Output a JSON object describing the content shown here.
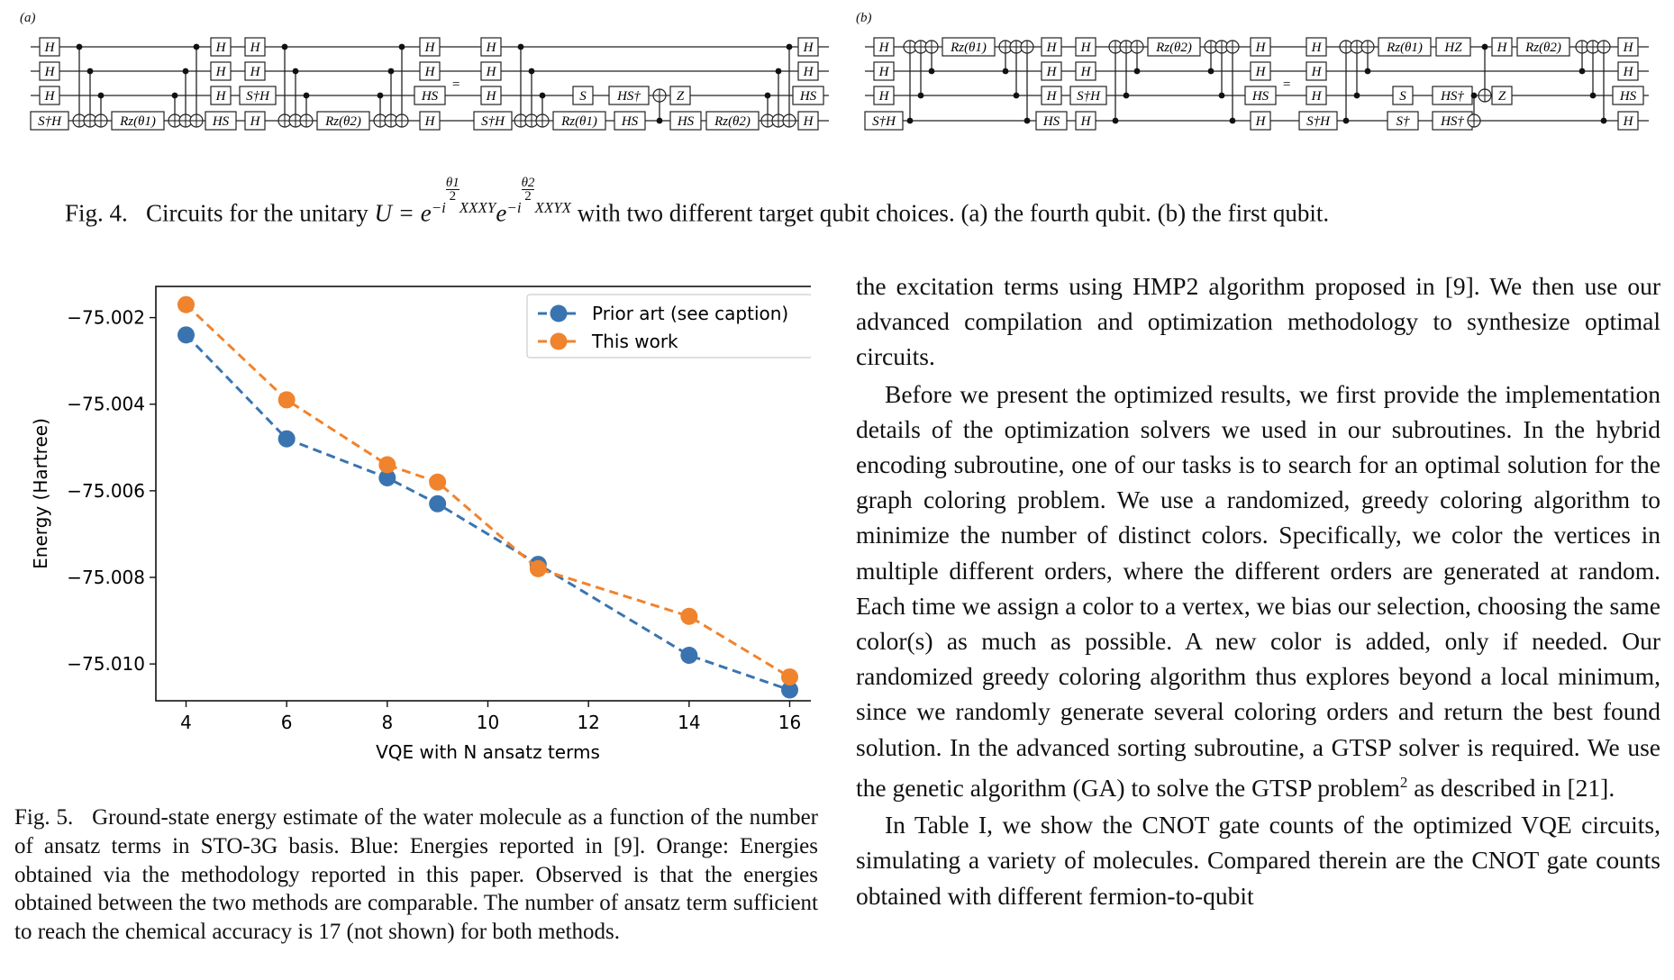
{
  "fig4": {
    "panel_a_label": "(a)",
    "panel_b_label": "(b)",
    "gates": {
      "h": "H",
      "sdag_h": "S†H",
      "hs": "HS",
      "hsdag": "HS†",
      "s": "S",
      "sdag": "S†",
      "z": "Z",
      "hz": "HZ",
      "rz1": "Rz(θ1)",
      "rz2": "Rz(θ2)",
      "equals": "="
    },
    "caption": {
      "label": "Fig. 4.",
      "prefix": "Circuits for the unitary",
      "u": "U = e",
      "exp1_i": "−i",
      "exp1_num": "θ1",
      "exp1_den": "2",
      "exp1_ops": "XXXY",
      "e2": "e",
      "exp2_i": "−i",
      "exp2_num": "θ2",
      "exp2_den": "2",
      "exp2_ops": "XXYX",
      "suffix": "with two different target qubit choices. (a) the fourth qubit. (b) the first qubit."
    }
  },
  "chart_data": {
    "type": "line",
    "xlabel": "VQE with N ansatz terms",
    "ylabel": "Energy (Hartree)",
    "xlim": [
      3.4,
      16.6
    ],
    "ylim": [
      -75.01085,
      -75.00128
    ],
    "xticks": [
      4,
      6,
      8,
      10,
      12,
      14,
      16
    ],
    "yticks": [
      -75.002,
      -75.004,
      -75.006,
      -75.008,
      -75.01
    ],
    "ytick_labels": [
      "−75.002",
      "−75.004",
      "−75.006",
      "−75.008",
      "−75.010"
    ],
    "legend_position": "top-right",
    "grid": false,
    "series": [
      {
        "name": "Prior art (see caption)",
        "color": "#3a74b0",
        "x": [
          4,
          6,
          8,
          9,
          11,
          14,
          16
        ],
        "values": [
          -75.0024,
          -75.0048,
          -75.0057,
          -75.0063,
          -75.0077,
          -75.0098,
          -75.0106
        ]
      },
      {
        "name": "This work",
        "color": "#f0832d",
        "x": [
          4,
          6,
          8,
          9,
          11,
          14,
          16
        ],
        "values": [
          -75.0017,
          -75.0039,
          -75.0054,
          -75.0058,
          -75.0078,
          -75.0089,
          -75.0103
        ]
      }
    ]
  },
  "fig5_caption": {
    "label": "Fig. 5.",
    "text": "Ground-state energy estimate of the water molecule as a function of the number of ansatz terms in STO-3G basis. Blue: Energies reported in [9]. Orange: Energies obtained via the methodology reported in this paper. Observed is that the energies obtained between the two methods are comparable. The number of ansatz term sufficient to reach the chemical accuracy is 17 (not shown) for both methods."
  },
  "body": {
    "p1": "the excitation terms using HMP2 algorithm proposed in [9]. We then use our advanced compilation and optimization methodology to synthesize optimal circuits.",
    "p2_before": "Before we present the optimized results, we first provide the implementation details of the optimization solvers we used in our subroutines. In the hybrid encoding subroutine, one of our tasks is to search for an optimal solution for the graph coloring problem. We use a randomized, greedy coloring algorithm to minimize the number of distinct colors. Specifically, we color the vertices in multiple different orders, where the different orders are generated at random. Each time we assign a color to a vertex, we bias our selection, choosing the same color(s) as much as possible. A new color is added, only if needed. Our randomized greedy coloring algorithm thus explores beyond a local minimum, since we randomly generate several coloring orders and return the best found solution. In the advanced sorting subroutine, a GTSP solver is required. We use the genetic algorithm (GA) to solve the GTSP problem",
    "p2_footnote": "2",
    "p2_after": " as described in [21].",
    "p3": "In Table I, we show the CNOT gate counts of the optimized VQE circuits, simulating a variety of molecules. Compared therein are the CNOT gate counts obtained with different fermion-to-qubit"
  }
}
